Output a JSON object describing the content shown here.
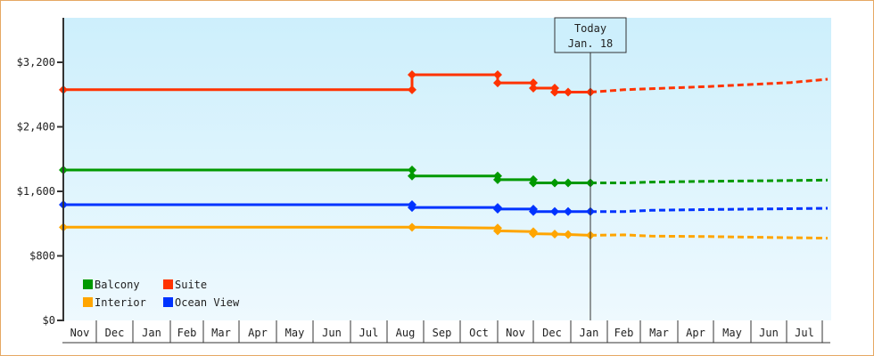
{
  "chart_data": {
    "type": "line",
    "title": "",
    "xlabel": "",
    "ylabel": "",
    "ylim": [
      0,
      3800
    ],
    "y_ticks": [
      "$0",
      "$800",
      "$1,600",
      "$2,400",
      "$3,200"
    ],
    "y_tick_values": [
      0,
      800,
      1600,
      2400,
      3200
    ],
    "x_ticks": [
      "Nov",
      "Dec",
      "Jan",
      "Feb",
      "Mar",
      "Apr",
      "May",
      "Jun",
      "Jul",
      "Aug",
      "Sep",
      "Oct",
      "Nov",
      "Dec",
      "Jan",
      "Feb",
      "Mar",
      "Apr",
      "May",
      "Jun",
      "Jul"
    ],
    "grid": false,
    "legend_position": "lower-left inside",
    "annotation": {
      "line1": "Today",
      "line2": "Jan. 18"
    },
    "series": [
      {
        "name": "Suite",
        "color": "#ff3300",
        "history": [
          {
            "x": "Nov (start)",
            "y": 2860
          },
          {
            "x": "Aug",
            "y": 2860
          },
          {
            "x": "Aug",
            "y": 3045
          },
          {
            "x": "Oct (late)",
            "y": 3045
          },
          {
            "x": "Oct (late)",
            "y": 2945
          },
          {
            "x": "Nov (late)",
            "y": 2945
          },
          {
            "x": "Nov (late)",
            "y": 2880
          },
          {
            "x": "Dec (mid)",
            "y": 2880
          },
          {
            "x": "Dec (mid)",
            "y": 2830
          },
          {
            "x": "Dec (late)",
            "y": 2830
          },
          {
            "x": "Jan 18",
            "y": 2830
          }
        ],
        "forecast": [
          {
            "x": "Jan 18",
            "y": 2830
          },
          {
            "x": "Feb",
            "y": 2860
          },
          {
            "x": "Apr",
            "y": 2900
          },
          {
            "x": "Jun",
            "y": 2950
          },
          {
            "x": "Jul (end)",
            "y": 2990
          }
        ]
      },
      {
        "name": "Balcony",
        "color": "#009900",
        "history": [
          {
            "x": "Nov (start)",
            "y": 1865
          },
          {
            "x": "Aug",
            "y": 1865
          },
          {
            "x": "Aug",
            "y": 1790
          },
          {
            "x": "Oct (late)",
            "y": 1790
          },
          {
            "x": "Oct (late)",
            "y": 1745
          },
          {
            "x": "Nov (late)",
            "y": 1745
          },
          {
            "x": "Nov (late)",
            "y": 1705
          },
          {
            "x": "Dec (mid)",
            "y": 1705
          },
          {
            "x": "Dec (late)",
            "y": 1705
          },
          {
            "x": "Jan 18",
            "y": 1705
          }
        ],
        "forecast": [
          {
            "x": "Jan 18",
            "y": 1705
          },
          {
            "x": "Feb",
            "y": 1705
          },
          {
            "x": "Feb (late)",
            "y": 1715
          },
          {
            "x": "Apr",
            "y": 1725
          },
          {
            "x": "Jun",
            "y": 1735
          },
          {
            "x": "Jul (end)",
            "y": 1740
          }
        ]
      },
      {
        "name": "Ocean View",
        "color": "#0033ff",
        "history": [
          {
            "x": "Nov (start)",
            "y": 1435
          },
          {
            "x": "Aug",
            "y": 1435
          },
          {
            "x": "Aug",
            "y": 1400
          },
          {
            "x": "Oct (late)",
            "y": 1400
          },
          {
            "x": "Oct (late)",
            "y": 1380
          },
          {
            "x": "Nov (late)",
            "y": 1380
          },
          {
            "x": "Nov (late)",
            "y": 1350
          },
          {
            "x": "Dec (mid)",
            "y": 1350
          },
          {
            "x": "Dec (late)",
            "y": 1350
          },
          {
            "x": "Jan 18",
            "y": 1350
          }
        ],
        "forecast": [
          {
            "x": "Jan 18",
            "y": 1350
          },
          {
            "x": "Feb",
            "y": 1350
          },
          {
            "x": "Feb (late)",
            "y": 1365
          },
          {
            "x": "Apr",
            "y": 1375
          },
          {
            "x": "Jun",
            "y": 1385
          },
          {
            "x": "Jul (end)",
            "y": 1390
          }
        ]
      },
      {
        "name": "Interior",
        "color": "#ffa500",
        "history": [
          {
            "x": "Nov (start)",
            "y": 1155
          },
          {
            "x": "Aug",
            "y": 1155
          },
          {
            "x": "Oct (late)",
            "y": 1145
          },
          {
            "x": "Oct (late)",
            "y": 1110
          },
          {
            "x": "Nov (late)",
            "y": 1100
          },
          {
            "x": "Nov (late)",
            "y": 1075
          },
          {
            "x": "Dec (mid)",
            "y": 1070
          },
          {
            "x": "Dec (late)",
            "y": 1065
          },
          {
            "x": "Jan 18",
            "y": 1055
          }
        ],
        "forecast": [
          {
            "x": "Jan 18",
            "y": 1055
          },
          {
            "x": "Feb",
            "y": 1060
          },
          {
            "x": "Feb (late)",
            "y": 1045
          },
          {
            "x": "Apr",
            "y": 1040
          },
          {
            "x": "Jun",
            "y": 1025
          },
          {
            "x": "Jul (end)",
            "y": 1020
          }
        ]
      }
    ]
  },
  "legend": {
    "items": [
      {
        "label": "Balcony",
        "color": "#009900"
      },
      {
        "label": "Suite",
        "color": "#ff3300"
      },
      {
        "label": "Interior",
        "color": "#ffa500"
      },
      {
        "label": "Ocean View",
        "color": "#0033ff"
      }
    ]
  },
  "today_marker": {
    "line1": "Today",
    "line2": "Jan. 18"
  },
  "colors": {
    "frame_border": "#e6a863",
    "plot_bg_top": "#cdeffc",
    "plot_bg_bottom": "#eef9fe",
    "axis": "#333333"
  }
}
